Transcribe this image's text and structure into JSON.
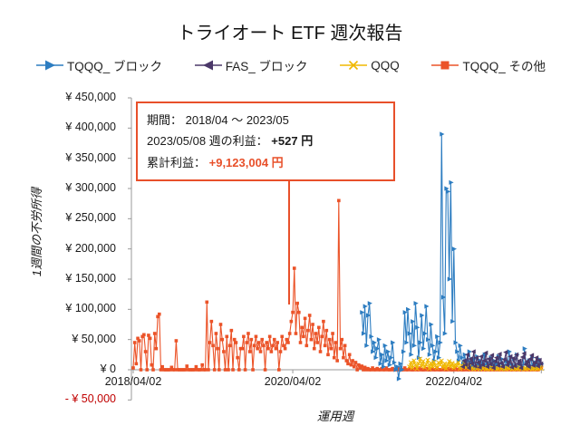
{
  "title": "トライオート ETF 週次報告",
  "legend": [
    {
      "label": "TQQQ_ ブロック",
      "color": "#2d7dc1",
      "marker": "triangle-right"
    },
    {
      "label": "FAS_ ブロック",
      "color": "#4b3869",
      "marker": "triangle-left"
    },
    {
      "label": "QQQ",
      "color": "#f0b800",
      "marker": "x-star"
    },
    {
      "label": "TQQQ_ その他",
      "color": "#eb5328",
      "marker": "square"
    }
  ],
  "annotation": {
    "period_label": "期間： 2018/04 ～ 2023/05",
    "week_profit_label": "2023/05/08 週の利益： ",
    "week_profit_value": "+527 円",
    "total_profit_label": "累計利益： ",
    "total_profit_value": "+9,123,004 円",
    "border_color": "#e8502a"
  },
  "chart_data": {
    "type": "line",
    "title": "トライオート ETF 週次報告",
    "xlabel": "運用週",
    "ylabel": "1週間の不労所得",
    "ylim_yen": [
      -50000,
      450000
    ],
    "ytick_step_yen": 50000,
    "ytick_labels": [
      "¥ 450,000",
      "¥ 400,000",
      "¥ 350,000",
      "¥ 300,000",
      "¥ 250,000",
      "¥ 200,000",
      "¥ 150,000",
      "¥ 100,000",
      "¥ 50,000",
      "¥ 0",
      "- ¥ 50,000"
    ],
    "negative_tick_color": "#c00000",
    "x_axis_weeks_total": 267,
    "xticks": [
      {
        "week": 0,
        "label": "2018/04/02"
      },
      {
        "week": 104,
        "label": "2020/04/02"
      },
      {
        "week": 209,
        "label": "2022/04/02"
      }
    ],
    "values_unit": "thousand_yen_per_week",
    "series": [
      {
        "id": "tqqq_block",
        "name": "TQQQ_ ブロック",
        "color": "#2d7dc1",
        "marker": "triangle-right",
        "start_week": 149,
        "values": [
          95,
          60,
          105,
          40,
          90,
          110,
          55,
          30,
          45,
          20,
          35,
          50,
          10,
          25,
          5,
          40,
          15,
          30,
          8,
          20,
          45,
          12,
          0,
          5,
          -15,
          10,
          0,
          30,
          95,
          45,
          100,
          60,
          25,
          80,
          40,
          110,
          70,
          20,
          45,
          90,
          35,
          60,
          105,
          50,
          25,
          75,
          40,
          15,
          30,
          55,
          20,
          45,
          390,
          120,
          60,
          300,
          295,
          150,
          310,
          80,
          200,
          45,
          30,
          15,
          40,
          20,
          10,
          25,
          8,
          15,
          30,
          12,
          5,
          18,
          3,
          22,
          8,
          15,
          2,
          10,
          25,
          6,
          12,
          4,
          20,
          8,
          15,
          3,
          10,
          22,
          5,
          18,
          8,
          2,
          15,
          5,
          30,
          10,
          3,
          18,
          6,
          25,
          4,
          12,
          8,
          2,
          35,
          10,
          5,
          15,
          3,
          20,
          8,
          12,
          4,
          18,
          6,
          10
        ]
      },
      {
        "id": "fas_block",
        "name": "FAS_ ブロック",
        "color": "#4b3869",
        "marker": "triangle-left",
        "start_week": 215,
        "values": [
          5,
          15,
          8,
          25,
          3,
          18,
          10,
          30,
          6,
          20,
          12,
          4,
          22,
          8,
          15,
          28,
          5,
          18,
          9,
          24,
          3,
          14,
          20,
          7,
          26,
          11,
          5,
          17,
          29,
          8,
          13,
          22,
          4,
          19,
          6,
          25,
          10,
          15,
          3,
          21,
          27,
          9,
          14,
          5,
          18,
          24,
          7,
          12,
          20,
          6,
          16,
          10
        ]
      },
      {
        "id": "qqq",
        "name": "QQQ",
        "color": "#f0b800",
        "marker": "x-star",
        "start_week": 180,
        "values": [
          5,
          12,
          3,
          15,
          8,
          2,
          10,
          18,
          6,
          14,
          4,
          9,
          16,
          2,
          11,
          5,
          13,
          7,
          3,
          12,
          8,
          15,
          4,
          10,
          2,
          8,
          14,
          5,
          11,
          3,
          9,
          6,
          12,
          2,
          7,
          4,
          10,
          3,
          8,
          5,
          2,
          3,
          1,
          4,
          2,
          5,
          1,
          3,
          2,
          4,
          1,
          2,
          3,
          1,
          4,
          2,
          3,
          1,
          2,
          4,
          1,
          3,
          2,
          1,
          3,
          2,
          4,
          1,
          2,
          3,
          1,
          2,
          4,
          1,
          3,
          2,
          1,
          4,
          2,
          3,
          1,
          2,
          3,
          1,
          2,
          4,
          2
        ]
      },
      {
        "id": "tqqq_other",
        "name": "TQQQ_ その他",
        "color": "#eb5328",
        "marker": "square",
        "start_week": 0,
        "values": [
          3,
          45,
          10,
          52,
          48,
          0,
          55,
          58,
          30,
          0,
          57,
          52,
          8,
          0,
          60,
          35,
          88,
          92,
          0,
          5,
          0,
          0,
          0,
          0,
          0,
          4,
          0,
          0,
          48,
          0,
          0,
          0,
          0,
          0,
          0,
          6,
          0,
          0,
          0,
          0,
          0,
          5,
          0,
          0,
          0,
          8,
          0,
          0,
          112,
          0,
          45,
          80,
          40,
          0,
          60,
          35,
          0,
          75,
          50,
          30,
          0,
          55,
          0,
          40,
          65,
          0,
          50,
          45,
          20,
          0,
          35,
          35,
          55,
          0,
          45,
          60,
          30,
          50,
          0,
          40,
          55,
          35,
          45,
          30,
          50,
          40,
          0,
          45,
          35,
          55,
          30,
          40,
          50,
          35,
          45,
          0,
          30,
          55,
          40,
          35,
          50,
          45,
          60,
          80,
          95,
          168,
          60,
          110,
          95,
          45,
          70,
          55,
          85,
          40,
          65,
          90,
          50,
          75,
          35,
          60,
          45,
          70,
          30,
          55,
          80,
          40,
          65,
          25,
          50,
          35,
          60,
          20,
          45,
          15,
          280,
          35,
          50,
          20,
          40,
          15,
          10,
          25,
          8,
          15,
          5,
          12,
          0,
          8,
          3,
          6,
          0,
          4,
          0,
          2,
          0,
          0,
          3,
          0,
          0,
          2,
          0,
          0,
          2,
          0,
          0,
          3,
          0,
          0,
          0,
          2,
          0,
          0,
          0,
          2,
          0,
          0,
          0,
          3,
          0,
          0,
          2,
          0,
          0,
          0,
          2,
          0,
          0,
          3,
          0,
          0,
          0,
          2,
          0,
          0,
          0,
          2,
          0,
          0,
          3,
          0,
          0,
          0,
          2,
          0,
          0,
          0,
          2,
          0,
          0,
          0,
          3,
          0,
          0,
          2,
          0,
          0,
          0,
          2,
          0,
          0,
          2,
          0,
          4,
          0,
          0,
          3,
          0,
          0,
          2,
          0,
          0,
          3,
          0,
          0,
          4,
          0,
          0,
          2,
          0,
          0,
          3,
          0,
          0,
          2,
          0,
          4,
          0,
          0,
          3,
          0,
          0,
          2,
          0,
          0,
          3,
          0,
          0,
          4,
          0,
          0,
          2,
          0,
          3,
          0,
          0,
          2,
          4
        ]
      }
    ]
  }
}
